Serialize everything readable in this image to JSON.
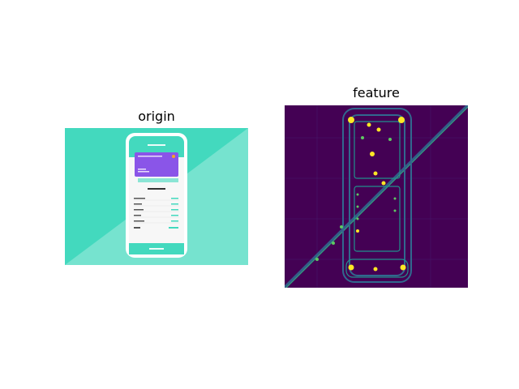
{
  "panels": {
    "origin_title": "origin",
    "feature_title": "feature"
  },
  "colors": {
    "teal": "#43d9be",
    "teal_light": "#76e3cf",
    "purple_card": "#8a55e8",
    "viridis_dark": "#440154",
    "viridis_blue": "#31688e",
    "viridis_green": "#35b779",
    "viridis_yellow": "#fde725"
  }
}
